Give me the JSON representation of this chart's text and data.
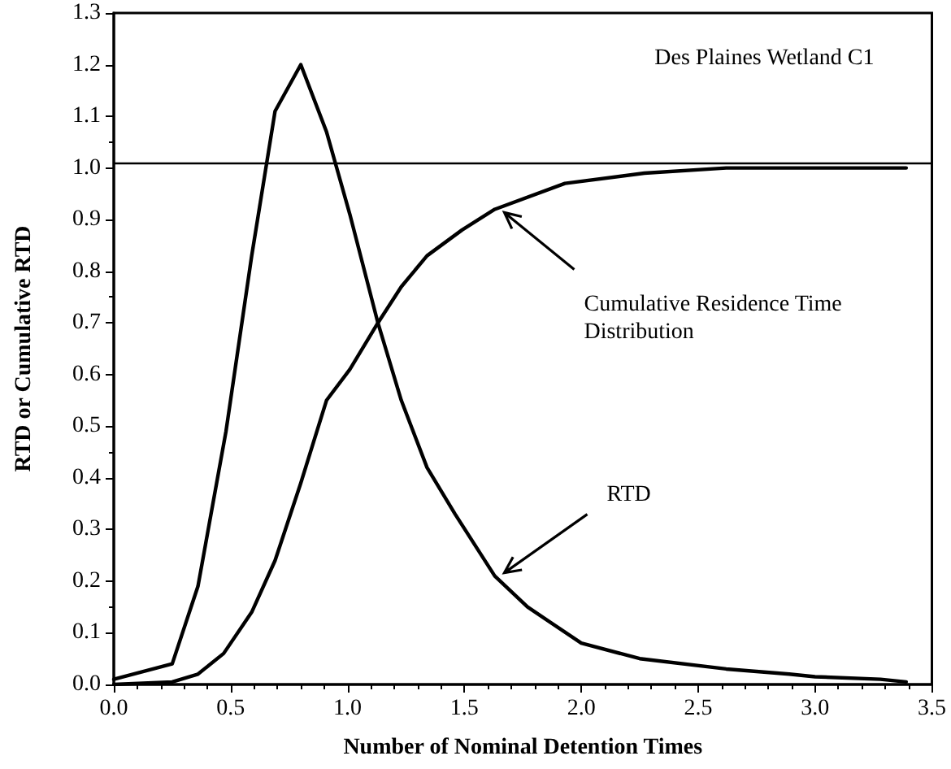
{
  "chart_data": {
    "type": "line",
    "title": "Des Plaines Wetland C1",
    "xlabel": "Number of Nominal Detention Times",
    "ylabel": "RTD or Cumulative RTD",
    "xlim": [
      0,
      3.5
    ],
    "xticks": [
      {
        "value": 0,
        "label": "0.0"
      },
      0.5,
      {
        "value": 1,
        "label": "1.0"
      },
      1.5,
      {
        "value": 2,
        "label": "2.0"
      },
      2.5,
      {
        "value": 3,
        "label": "3.0"
      },
      3.5
    ],
    "ylim": [
      0,
      1.3
    ],
    "yticks": [
      {
        "value": 0,
        "label": "0.0"
      },
      0.1,
      0.2,
      0.3,
      0.4,
      0.5,
      0.6,
      0.7,
      0.8,
      0.9,
      {
        "value": 1,
        "label": "1.0"
      },
      1.1,
      1.2,
      1.3
    ],
    "grid": false,
    "marker": "none",
    "line_style": "solid",
    "series": [
      {
        "color": "#000000",
        "x": [
          0,
          0.25,
          0.36,
          0.48,
          0.59,
          0.69,
          0.8,
          0.91,
          1.01,
          1.13,
          1.23,
          1.34,
          1.46,
          1.63,
          1.77,
          2,
          2.25,
          2.62,
          2.89,
          3,
          3.28,
          3.39
        ],
        "values": [
          0.01,
          0.04,
          0.19,
          0.49,
          0.83,
          1.11,
          1.2,
          1.07,
          0.91,
          0.7,
          0.55,
          0.42,
          0.33,
          0.21,
          0.15,
          0.08,
          0.05,
          0.03,
          0.02,
          0.015,
          0.01,
          0.005
        ]
      },
      {
        "color": "#000000",
        "x": [
          0,
          0.25,
          0.36,
          0.47,
          0.59,
          0.69,
          0.8,
          0.91,
          1.01,
          1.13,
          1.23,
          1.34,
          1.49,
          1.63,
          1.93,
          2.27,
          2.62,
          3.28,
          3.39
        ],
        "values": [
          0,
          0.005,
          0.02,
          0.06,
          0.14,
          0.24,
          0.39,
          0.55,
          0.61,
          0.7,
          0.77,
          0.83,
          0.88,
          0.92,
          0.97,
          0.99,
          1,
          1,
          1
        ]
      }
    ],
    "ref_lines": [
      {
        "axis": "y",
        "value": 1.01,
        "color": "#000000",
        "line_style": "solid"
      }
    ],
    "annotations": [
      {
        "text": "Cumulative Residence Time Distribution",
        "x": 1.65,
        "y": 0.92
      },
      {
        "text": "RTD",
        "x": 1.65,
        "y": 0.21
      }
    ]
  }
}
